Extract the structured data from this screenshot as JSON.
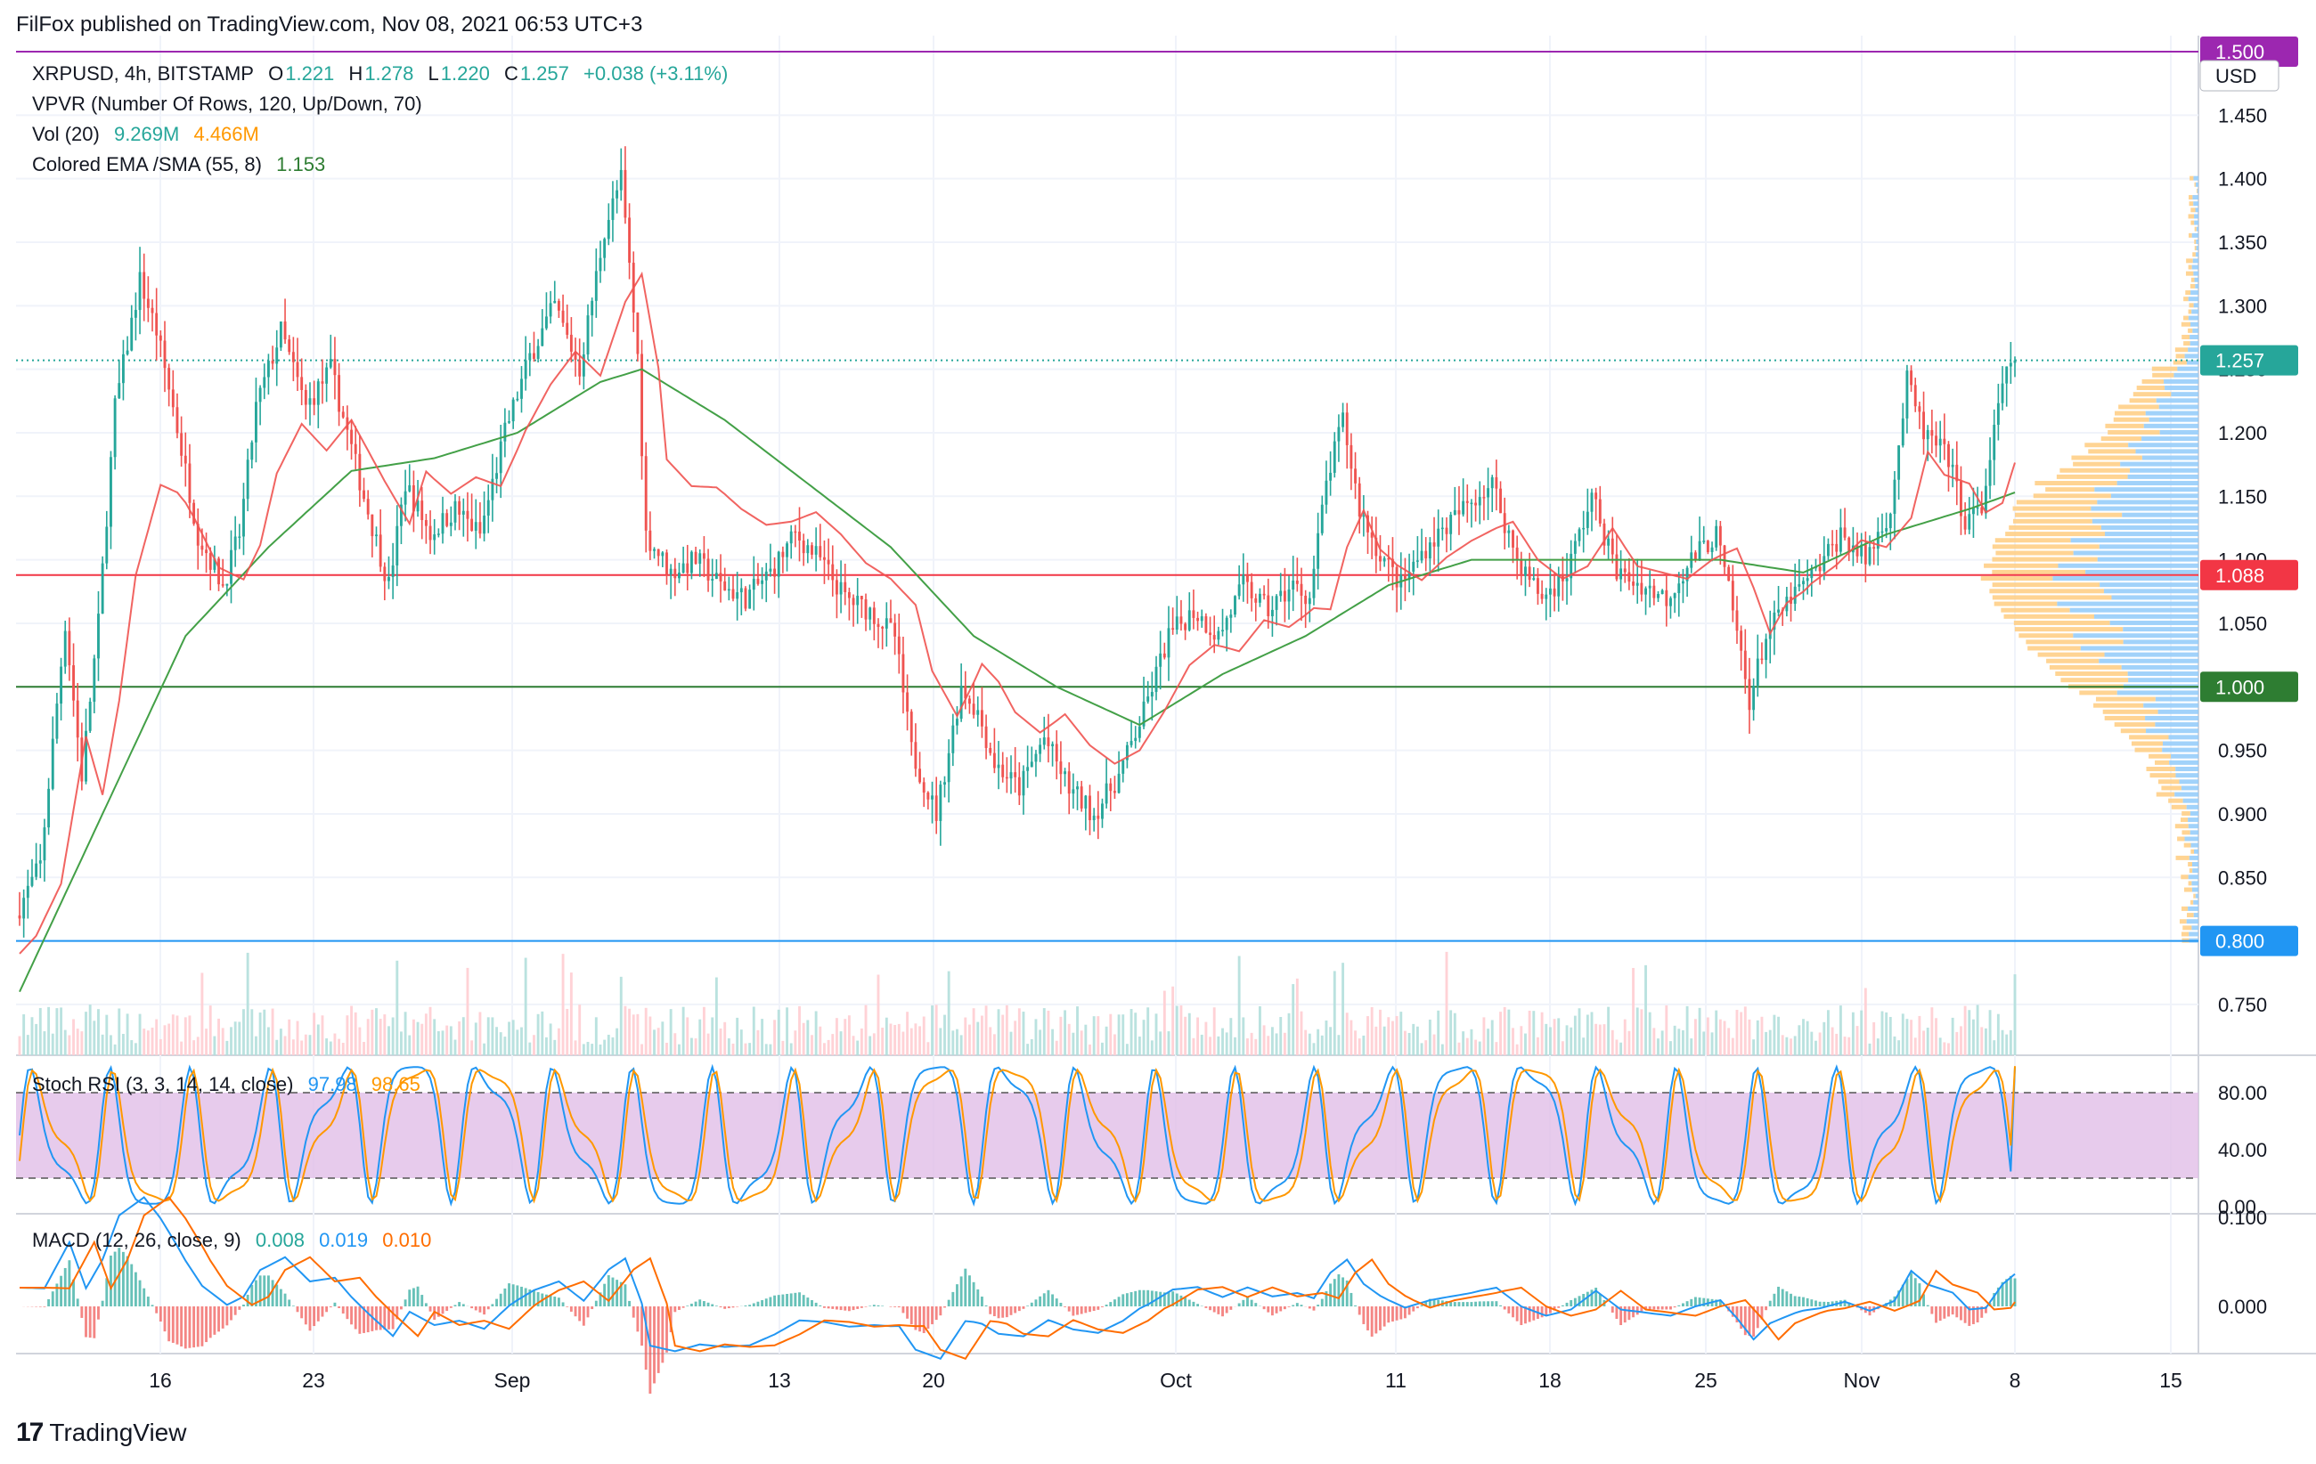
{
  "publisher": "FilFox published on TradingView.com, Nov 08, 2021 06:53 UTC+3",
  "brand": "TradingView",
  "legend": {
    "symbol": "XRPUSD, 4h, BITSTAMP",
    "o_label": "O",
    "o": "1.221",
    "h_label": "H",
    "h": "1.278",
    "l_label": "L",
    "l": "1.220",
    "c_label": "C",
    "c": "1.257",
    "change": "+0.038 (+3.11%)",
    "vpvr": "VPVR (Number Of Rows, 120, Up/Down, 70)",
    "vol_label": "Vol (20)",
    "vol_1": "9.269M",
    "vol_2": "4.466M",
    "ema_label": "Colored EMA /SMA (55, 8)",
    "ema_value": "1.153",
    "stoch_label": "Stoch RSI (3, 3, 14, 14, close)",
    "stoch_k": "97.98",
    "stoch_d": "98.65",
    "macd_label": "MACD (12, 26, close, 9)",
    "macd_1": "0.008",
    "macd_2": "0.019",
    "macd_3": "0.010"
  },
  "colors": {
    "up": "#26a69a",
    "down": "#ef5350",
    "ema": "#43a047",
    "sma": "#ef5350",
    "level_red": "#f23645",
    "level_green": "#2e7d32",
    "level_blue": "#2196f3",
    "level_purple": "#9c27b0",
    "vpvr_up": "#90caf9",
    "vpvr_down": "#ffcc80",
    "stoch_band": "#e1bee7",
    "stoch_k": "#2196f3",
    "stoch_d": "#ff9800",
    "macd": "#2196f3",
    "signal": "#ff6d00"
  },
  "chart_data": {
    "type": "candlestick",
    "symbol": "XRPUSD",
    "timeframe": "4h",
    "exchange": "BITSTAMP",
    "price_axis": {
      "unit": "USD",
      "ticks": [
        0.75,
        0.8,
        0.85,
        0.9,
        0.95,
        1.0,
        1.05,
        1.1,
        1.15,
        1.2,
        1.25,
        1.3,
        1.35,
        1.4,
        1.45,
        1.5
      ],
      "ylim": [
        0.71,
        1.5
      ]
    },
    "x_axis_labels": [
      "16",
      "23",
      "Sep",
      "13",
      "20",
      "Oct",
      "11",
      "18",
      "25",
      "Nov",
      "8",
      "15"
    ],
    "price_labels": [
      {
        "text": "1.500",
        "value": 1.5,
        "color": "#9c27b0"
      },
      {
        "text": "USD",
        "value": 1.485,
        "color": "#ffffff"
      },
      {
        "text": "1.257",
        "value": 1.257,
        "color": "#26a69a"
      },
      {
        "text": "1.088",
        "value": 1.088,
        "color": "#f23645"
      },
      {
        "text": "1.000",
        "value": 1.0,
        "color": "#2e7d32"
      },
      {
        "text": "0.800",
        "value": 0.8,
        "color": "#2196f3"
      }
    ],
    "horizontal_levels": [
      {
        "value": 1.5,
        "color": "#9c27b0"
      },
      {
        "value": 1.088,
        "color": "#f23645"
      },
      {
        "value": 1.0,
        "color": "#2e7d32"
      },
      {
        "value": 0.8,
        "color": "#2196f3"
      }
    ],
    "last_price": 1.257,
    "price_path": [
      [
        0,
        0.82
      ],
      [
        6,
        0.86
      ],
      [
        12,
        1.05
      ],
      [
        16,
        0.93
      ],
      [
        20,
        1.05
      ],
      [
        24,
        1.22
      ],
      [
        30,
        1.32
      ],
      [
        34,
        1.28
      ],
      [
        38,
        1.22
      ],
      [
        44,
        1.12
      ],
      [
        50,
        1.08
      ],
      [
        54,
        1.12
      ],
      [
        58,
        1.22
      ],
      [
        64,
        1.28
      ],
      [
        70,
        1.22
      ],
      [
        76,
        1.25
      ],
      [
        80,
        1.2
      ],
      [
        84,
        1.15
      ],
      [
        90,
        1.08
      ],
      [
        94,
        1.16
      ],
      [
        100,
        1.12
      ],
      [
        106,
        1.14
      ],
      [
        112,
        1.12
      ],
      [
        118,
        1.2
      ],
      [
        124,
        1.26
      ],
      [
        130,
        1.3
      ],
      [
        136,
        1.25
      ],
      [
        142,
        1.36
      ],
      [
        146,
        1.4
      ],
      [
        150,
        1.26
      ],
      [
        152,
        1.12
      ],
      [
        158,
        1.09
      ],
      [
        164,
        1.1
      ],
      [
        170,
        1.08
      ],
      [
        176,
        1.07
      ],
      [
        182,
        1.09
      ],
      [
        188,
        1.12
      ],
      [
        194,
        1.1
      ],
      [
        200,
        1.07
      ],
      [
        206,
        1.06
      ],
      [
        212,
        1.04
      ],
      [
        216,
        0.95
      ],
      [
        222,
        0.9
      ],
      [
        228,
        1.0
      ],
      [
        232,
        0.98
      ],
      [
        236,
        0.94
      ],
      [
        242,
        0.92
      ],
      [
        248,
        0.96
      ],
      [
        254,
        0.92
      ],
      [
        260,
        0.9
      ],
      [
        266,
        0.93
      ],
      [
        272,
        0.98
      ],
      [
        278,
        1.04
      ],
      [
        284,
        1.06
      ],
      [
        290,
        1.04
      ],
      [
        296,
        1.08
      ],
      [
        302,
        1.06
      ],
      [
        308,
        1.08
      ],
      [
        312,
        1.07
      ],
      [
        316,
        1.16
      ],
      [
        320,
        1.21
      ],
      [
        324,
        1.14
      ],
      [
        328,
        1.11
      ],
      [
        334,
        1.08
      ],
      [
        340,
        1.11
      ],
      [
        346,
        1.13
      ],
      [
        352,
        1.15
      ],
      [
        356,
        1.16
      ],
      [
        362,
        1.1
      ],
      [
        368,
        1.07
      ],
      [
        374,
        1.09
      ],
      [
        380,
        1.15
      ],
      [
        386,
        1.09
      ],
      [
        392,
        1.08
      ],
      [
        398,
        1.07
      ],
      [
        404,
        1.1
      ],
      [
        410,
        1.12
      ],
      [
        414,
        1.06
      ],
      [
        418,
        0.99
      ],
      [
        422,
        1.04
      ],
      [
        428,
        1.07
      ],
      [
        434,
        1.09
      ],
      [
        440,
        1.12
      ],
      [
        446,
        1.1
      ],
      [
        452,
        1.14
      ],
      [
        456,
        1.24
      ],
      [
        460,
        1.2
      ],
      [
        466,
        1.18
      ],
      [
        470,
        1.13
      ],
      [
        474,
        1.14
      ],
      [
        478,
        1.22
      ],
      [
        481,
        1.257
      ]
    ],
    "ema_path": [
      [
        0,
        0.76
      ],
      [
        20,
        0.9
      ],
      [
        40,
        1.04
      ],
      [
        60,
        1.11
      ],
      [
        80,
        1.17
      ],
      [
        100,
        1.18
      ],
      [
        120,
        1.2
      ],
      [
        140,
        1.24
      ],
      [
        150,
        1.25
      ],
      [
        170,
        1.21
      ],
      [
        190,
        1.16
      ],
      [
        210,
        1.11
      ],
      [
        230,
        1.04
      ],
      [
        250,
        1.0
      ],
      [
        270,
        0.97
      ],
      [
        290,
        1.01
      ],
      [
        310,
        1.04
      ],
      [
        330,
        1.08
      ],
      [
        350,
        1.1
      ],
      [
        370,
        1.1
      ],
      [
        390,
        1.1
      ],
      [
        410,
        1.1
      ],
      [
        430,
        1.09
      ],
      [
        450,
        1.12
      ],
      [
        470,
        1.14
      ],
      [
        481,
        1.153
      ]
    ],
    "stoch_rsi": {
      "k": 97.98,
      "d": 98.65,
      "ticks": [
        0,
        40,
        80
      ],
      "band": [
        20,
        80
      ],
      "period_bars": 18
    },
    "macd": {
      "macd": 0.008,
      "signal": 0.019,
      "histogram": 0.01,
      "ticks": [
        0.0,
        0.1
      ]
    }
  }
}
